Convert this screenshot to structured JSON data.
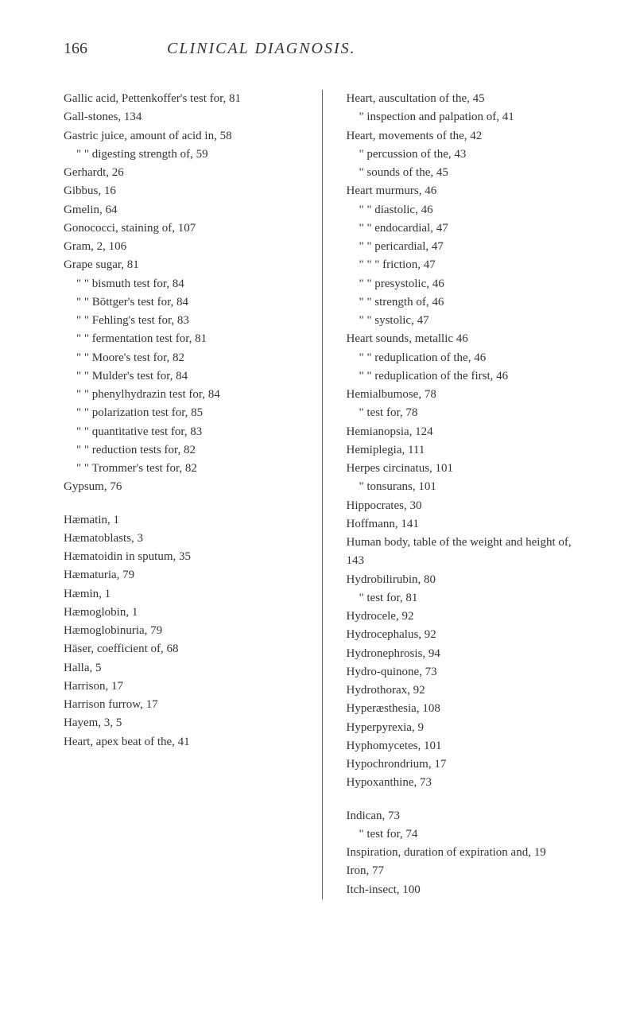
{
  "page_number": "166",
  "page_title": "CLINICAL DIAGNOSIS.",
  "left_column": [
    {
      "text": "Gallic acid, Pettenkoffer's test for, 81",
      "class": "entry"
    },
    {
      "text": "Gall-stones, 134",
      "class": "entry"
    },
    {
      "text": "Gastric juice, amount of acid in, 58",
      "class": "entry"
    },
    {
      "text": "\" \" digesting strength of, 59",
      "class": "entry indent1"
    },
    {
      "text": "Gerhardt, 26",
      "class": "entry"
    },
    {
      "text": "Gibbus, 16",
      "class": "entry"
    },
    {
      "text": "Gmelin, 64",
      "class": "entry"
    },
    {
      "text": "Gonococci, staining of, 107",
      "class": "entry"
    },
    {
      "text": "Gram, 2, 106",
      "class": "entry"
    },
    {
      "text": "Grape sugar, 81",
      "class": "entry"
    },
    {
      "text": "\" \" bismuth test for, 84",
      "class": "entry indent1"
    },
    {
      "text": "\" \" Böttger's test for, 84",
      "class": "entry indent1"
    },
    {
      "text": "\" \" Fehling's test for, 83",
      "class": "entry indent1"
    },
    {
      "text": "\" \" fermentation test for, 81",
      "class": "entry indent1"
    },
    {
      "text": "\" \" Moore's test for, 82",
      "class": "entry indent1"
    },
    {
      "text": "\" \" Mulder's test for, 84",
      "class": "entry indent1"
    },
    {
      "text": "\" \" phenylhydrazin test for, 84",
      "class": "entry indent1"
    },
    {
      "text": "\" \" polarization test for, 85",
      "class": "entry indent1"
    },
    {
      "text": "\" \" quantitative test for, 83",
      "class": "entry indent1"
    },
    {
      "text": "\" \" reduction tests for, 82",
      "class": "entry indent1"
    },
    {
      "text": "\" \" Trommer's test for, 82",
      "class": "entry indent1"
    },
    {
      "text": "Gypsum, 76",
      "class": "entry"
    },
    {
      "text": "Hæmatin, 1",
      "class": "entry space-top"
    },
    {
      "text": "Hæmatoblasts, 3",
      "class": "entry"
    },
    {
      "text": "Hæmatoidin in sputum, 35",
      "class": "entry"
    },
    {
      "text": "Hæmaturia, 79",
      "class": "entry"
    },
    {
      "text": "Hæmin, 1",
      "class": "entry"
    },
    {
      "text": "Hæmoglobin, 1",
      "class": "entry"
    },
    {
      "text": "Hæmoglobinuria, 79",
      "class": "entry"
    },
    {
      "text": "Häser, coefficient of, 68",
      "class": "entry"
    },
    {
      "text": "Halla, 5",
      "class": "entry"
    },
    {
      "text": "Harrison, 17",
      "class": "entry"
    },
    {
      "text": "Harrison furrow, 17",
      "class": "entry"
    },
    {
      "text": "Hayem, 3, 5",
      "class": "entry"
    },
    {
      "text": "Heart, apex beat of the, 41",
      "class": "entry"
    }
  ],
  "right_column": [
    {
      "text": "Heart, auscultation of the, 45",
      "class": "entry"
    },
    {
      "text": "\" inspection and palpation of, 41",
      "class": "entry indent1"
    },
    {
      "text": "Heart, movements of the, 42",
      "class": "entry"
    },
    {
      "text": "\" percussion of the, 43",
      "class": "entry indent1"
    },
    {
      "text": "\" sounds of the, 45",
      "class": "entry indent1"
    },
    {
      "text": "Heart murmurs, 46",
      "class": "entry"
    },
    {
      "text": "\" \" diastolic, 46",
      "class": "entry indent1"
    },
    {
      "text": "\" \" endocardial, 47",
      "class": "entry indent1"
    },
    {
      "text": "\" \" pericardial, 47",
      "class": "entry indent1"
    },
    {
      "text": "\" \" \" friction, 47",
      "class": "entry indent1"
    },
    {
      "text": "\" \" presystolic, 46",
      "class": "entry indent1"
    },
    {
      "text": "\" \" strength of, 46",
      "class": "entry indent1"
    },
    {
      "text": "\" \" systolic, 47",
      "class": "entry indent1"
    },
    {
      "text": "Heart sounds, metallic 46",
      "class": "entry"
    },
    {
      "text": "\" \" reduplication of the, 46",
      "class": "entry indent1"
    },
    {
      "text": "\" \" reduplication of the first, 46",
      "class": "entry indent1"
    },
    {
      "text": "Hemialbumose, 78",
      "class": "entry"
    },
    {
      "text": "\" test for, 78",
      "class": "entry indent1"
    },
    {
      "text": "Hemianopsia, 124",
      "class": "entry"
    },
    {
      "text": "Hemiplegia, 111",
      "class": "entry"
    },
    {
      "text": "Herpes circinatus, 101",
      "class": "entry"
    },
    {
      "text": "\" tonsurans, 101",
      "class": "entry indent1"
    },
    {
      "text": "Hippocrates, 30",
      "class": "entry"
    },
    {
      "text": "Hoffmann, 141",
      "class": "entry"
    },
    {
      "text": "Human body, table of the weight and height of, 143",
      "class": "entry"
    },
    {
      "text": "Hydrobilirubin, 80",
      "class": "entry"
    },
    {
      "text": "\" test for, 81",
      "class": "entry indent1"
    },
    {
      "text": "Hydrocele, 92",
      "class": "entry"
    },
    {
      "text": "Hydrocephalus, 92",
      "class": "entry"
    },
    {
      "text": "Hydronephrosis, 94",
      "class": "entry"
    },
    {
      "text": "Hydro-quinone, 73",
      "class": "entry"
    },
    {
      "text": "Hydrothorax, 92",
      "class": "entry"
    },
    {
      "text": "Hyperæsthesia, 108",
      "class": "entry"
    },
    {
      "text": "Hyperpyrexia, 9",
      "class": "entry"
    },
    {
      "text": "Hyphomycetes, 101",
      "class": "entry"
    },
    {
      "text": "Hypochrondrium, 17",
      "class": "entry"
    },
    {
      "text": "Hypoxanthine, 73",
      "class": "entry"
    },
    {
      "text": "Indican, 73",
      "class": "entry space-top"
    },
    {
      "text": "\" test for, 74",
      "class": "entry indent1"
    },
    {
      "text": "Inspiration, duration of expiration and, 19",
      "class": "entry"
    },
    {
      "text": "Iron, 77",
      "class": "entry"
    },
    {
      "text": "Itch-insect, 100",
      "class": "entry"
    }
  ]
}
